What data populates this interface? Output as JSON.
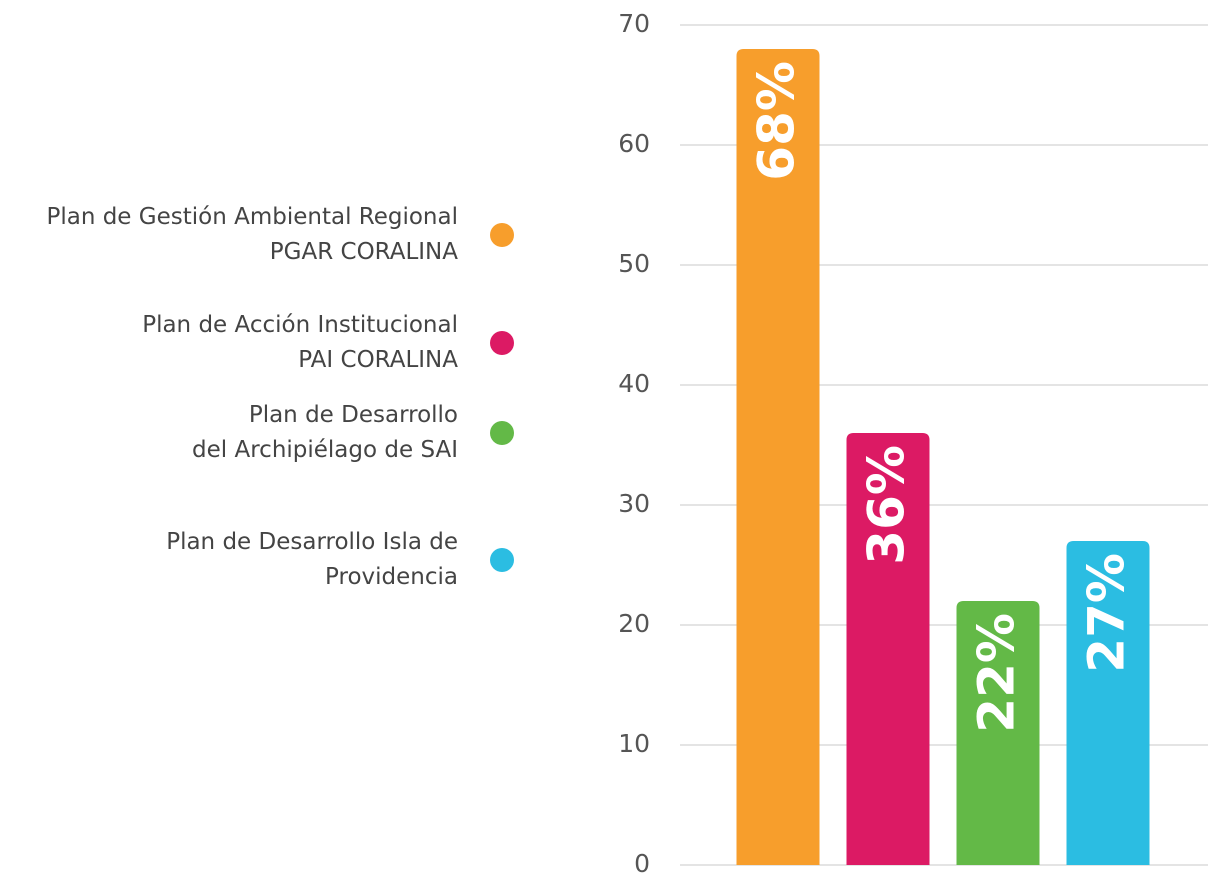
{
  "chart_data": {
    "type": "bar",
    "categories": [
      "Plan de Gestión Ambiental Regional\nPGAR CORALINA",
      "Plan de Acción Institucional\nPAI CORALINA",
      "Plan de Desarrollo\ndel Archipiélago de SAI",
      "Plan de Desarrollo Isla de\nProvidencia"
    ],
    "values": [
      68,
      36,
      22,
      27
    ],
    "value_labels": [
      "68%",
      "36%",
      "22%",
      "27%"
    ],
    "colors": [
      "#f79e2c",
      "#dc1a64",
      "#63b947",
      "#2bbde2"
    ],
    "ylim": [
      0,
      70
    ],
    "yticks": [
      0,
      10,
      20,
      30,
      40,
      50,
      60,
      70
    ],
    "grid": true,
    "legend": "left"
  }
}
